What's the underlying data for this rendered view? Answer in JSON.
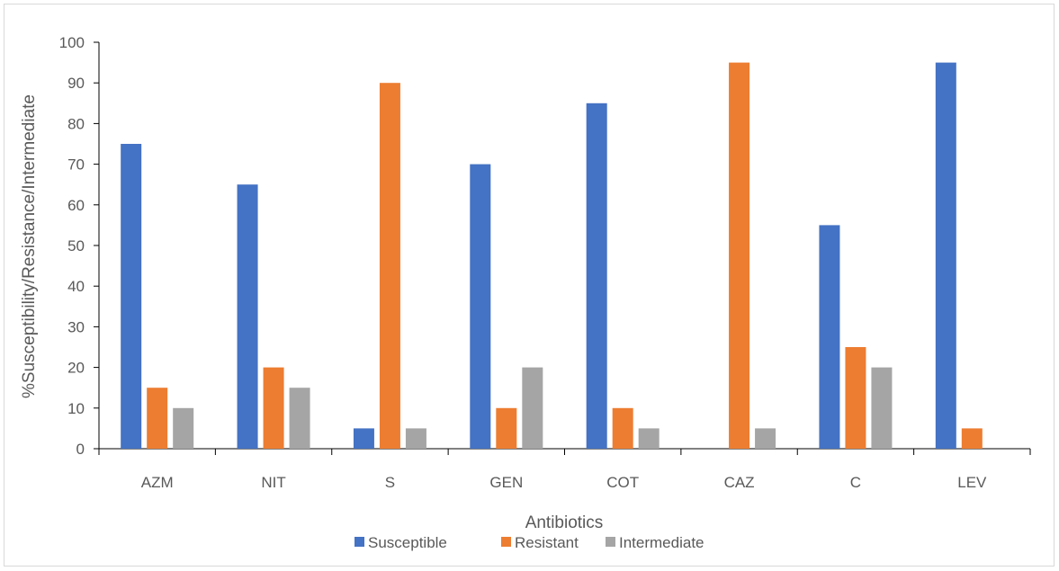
{
  "chart_data": {
    "type": "bar",
    "title": "",
    "xlabel": "Antibiotics",
    "ylabel": "%Susceptibility/Resistance/Intermediate",
    "ylim": [
      0,
      100
    ],
    "ytick_step": 10,
    "yticks": [
      "0",
      "10",
      "20",
      "30",
      "40",
      "50",
      "60",
      "70",
      "80",
      "90",
      "100"
    ],
    "grid": false,
    "legend_position": "bottom",
    "categories": [
      "AZM",
      "NIT",
      "S",
      "GEN",
      "COT",
      "CAZ",
      "C",
      "LEV"
    ],
    "series": [
      {
        "name": "Susceptible",
        "color": "#4472C4",
        "values": [
          75,
          65,
          5,
          70,
          85,
          0,
          55,
          95
        ]
      },
      {
        "name": "Resistant",
        "color": "#ED7D31",
        "values": [
          15,
          20,
          90,
          10,
          10,
          95,
          25,
          5
        ]
      },
      {
        "name": "Intermediate",
        "color": "#A5A5A5",
        "values": [
          10,
          15,
          5,
          20,
          5,
          5,
          20,
          0
        ]
      }
    ]
  }
}
